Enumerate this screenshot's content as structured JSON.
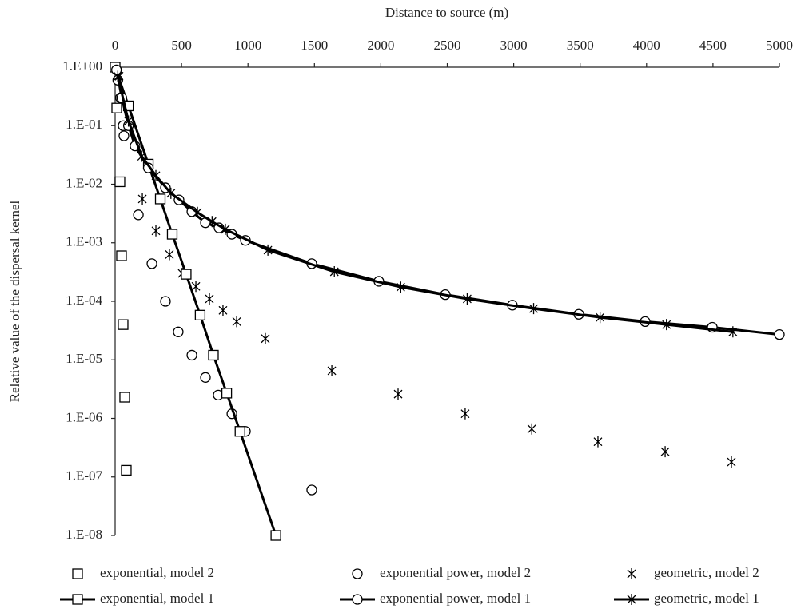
{
  "chart_data": {
    "type": "scatter",
    "xlabel": "Distance to source (m)",
    "ylabel": "Relative value of the dispersal kernel",
    "xaxis_position": "top",
    "xlim": [
      0,
      5000
    ],
    "xticks": [
      0,
      500,
      1000,
      1500,
      2000,
      2500,
      3000,
      3500,
      4000,
      4500,
      5000
    ],
    "ylim": [
      1e-08,
      1
    ],
    "log_y": true,
    "yticks": [
      {
        "value": 1,
        "label": "1.E+00"
      },
      {
        "value": 0.1,
        "label": "1.E-01"
      },
      {
        "value": 0.01,
        "label": "1.E-02"
      },
      {
        "value": 0.001,
        "label": "1.E-03"
      },
      {
        "value": 0.0001,
        "label": "1.E-04"
      },
      {
        "value": 1e-05,
        "label": "1.E-05"
      },
      {
        "value": 1e-06,
        "label": "1.E-06"
      },
      {
        "value": 1e-07,
        "label": "1.E-07"
      },
      {
        "value": 1e-08,
        "label": "1.E-08"
      }
    ],
    "grid": false,
    "legend": "bottom",
    "series": [
      {
        "name": "exponential, model 2",
        "color": "#000000",
        "marker": "square",
        "line": false,
        "x": [
          12,
          36,
          48,
          60,
          72,
          84
        ],
        "values": [
          0.2,
          0.011,
          0.0006,
          4e-05,
          2.3e-06,
          1.3e-07
        ]
      },
      {
        "name": "exponential power, model 2",
        "color": "#000000",
        "marker": "circle",
        "line": false,
        "x": [
          20,
          40,
          60,
          66,
          175,
          277,
          379,
          475,
          578,
          680,
          776,
          879,
          981,
          1480
        ],
        "values": [
          0.6,
          0.3,
          0.1,
          0.067,
          0.003,
          0.00044,
          0.0001,
          3e-05,
          1.2e-05,
          5e-06,
          2.5e-06,
          1.2e-06,
          6e-07,
          6e-08
        ]
      },
      {
        "name": "geometric, model 2",
        "color": "#000000",
        "marker": "star",
        "line": false,
        "x": [
          30,
          205,
          307,
          409,
          505,
          608,
          710,
          812,
          915,
          1131,
          1631,
          2130,
          2635,
          3136,
          3634,
          4140,
          4639
        ],
        "values": [
          0.7,
          0.0056,
          0.0016,
          0.00063,
          0.0003,
          0.00018,
          0.00011,
          7e-05,
          4.5e-05,
          2.3e-05,
          6.5e-06,
          2.6e-06,
          1.2e-06,
          6.6e-07,
          4e-07,
          2.7e-07,
          1.8e-07
        ]
      },
      {
        "name": "exponential, model 1",
        "color": "#000000",
        "marker": "square",
        "line": true,
        "x": [
          0,
          100,
          250,
          340,
          430,
          535,
          640,
          740,
          840,
          940,
          1210
        ],
        "values": [
          1,
          0.218,
          0.022,
          0.0056,
          0.0014,
          0.00029,
          5.8e-05,
          1.2e-05,
          2.7e-06,
          6e-07,
          1e-08
        ]
      },
      {
        "name": "exponential power, model 1",
        "color": "#000000",
        "marker": "circle",
        "line": true,
        "x": [
          10,
          50,
          100,
          150,
          250,
          379,
          481,
          578,
          680,
          782,
          879,
          981,
          1480,
          1985,
          2485,
          2990,
          3490,
          3989,
          4495,
          5000
        ],
        "values": [
          0.9,
          0.3,
          0.1,
          0.045,
          0.019,
          0.0087,
          0.0054,
          0.0034,
          0.0022,
          0.0018,
          0.0014,
          0.0011,
          0.00044,
          0.00022,
          0.00013,
          8.6e-05,
          6e-05,
          4.5e-05,
          3.6e-05,
          2.7e-05
        ]
      },
      {
        "name": "geometric, model 1",
        "color": "#000000",
        "marker": "star",
        "line": true,
        "x": [
          20,
          100,
          200,
          307,
          420,
          620,
          730,
          830,
          1150,
          1650,
          2150,
          2650,
          3150,
          3650,
          4150,
          4650
        ],
        "values": [
          0.7,
          0.12,
          0.03,
          0.014,
          0.007,
          0.0033,
          0.0023,
          0.0017,
          0.00075,
          0.00032,
          0.000175,
          0.00011,
          7.5e-05,
          5.3e-05,
          4e-05,
          3e-05
        ]
      }
    ]
  }
}
